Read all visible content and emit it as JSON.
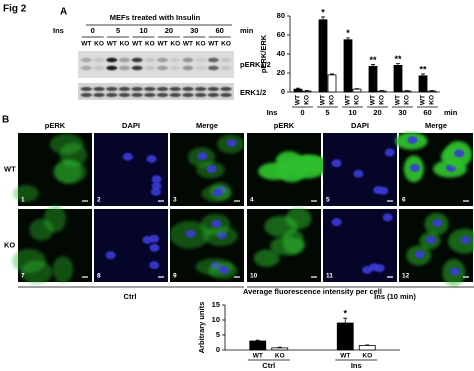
{
  "figure_label": "Fig 2",
  "panel_a": {
    "label": "A",
    "treatment": "MEFs treated with Insulin",
    "ins_label": "Ins",
    "times": [
      "0",
      "5",
      "10",
      "20",
      "30",
      "60"
    ],
    "time_unit": "min",
    "genotypes": [
      "WT",
      "KO"
    ],
    "blot_labels": [
      "pERK1/2",
      "ERK1/2"
    ]
  },
  "panel_b": {
    "label": "B",
    "columns": [
      "pERK",
      "DAPI",
      "Merge",
      "pERK",
      "DAPI",
      "Merge"
    ],
    "rows": [
      "WT",
      "KO"
    ],
    "image_numbers": [
      [
        1,
        2,
        3,
        4,
        5,
        6
      ],
      [
        7,
        8,
        9,
        10,
        11,
        12
      ]
    ],
    "conditions": [
      "Ctrl",
      "Ins (10 min)"
    ]
  },
  "chart_data": [
    {
      "type": "bar",
      "y_label": "pERK/ERK",
      "x_prefix": "Ins",
      "x_unit": "min",
      "categories": [
        "0",
        "5",
        "10",
        "20",
        "30",
        "60"
      ],
      "series": [
        {
          "name": "WT",
          "color": "#000000",
          "values": [
            3,
            76,
            55,
            27,
            28,
            17
          ],
          "errors": [
            1,
            3,
            2,
            2,
            2,
            2
          ],
          "annotations": [
            null,
            "*",
            "*",
            "**",
            "**",
            "**"
          ]
        },
        {
          "name": "KO",
          "color": "#ffffff",
          "values": [
            1,
            18,
            3,
            1,
            1,
            1
          ],
          "errors": [
            0.5,
            1,
            0.5,
            0.5,
            0.5,
            0.5
          ]
        }
      ],
      "ylim": [
        0,
        80
      ],
      "yticks": [
        0,
        20,
        40,
        60,
        80
      ]
    },
    {
      "type": "bar",
      "title": "Average fluorescence intensity per cell",
      "y_label": "Arbitrary units",
      "categories": [
        "Ctrl",
        "Ins"
      ],
      "series": [
        {
          "name": "WT",
          "color": "#000000",
          "values": [
            3,
            9
          ],
          "errors": [
            0.3,
            1.6
          ],
          "annotations": [
            null,
            "*"
          ]
        },
        {
          "name": "KO",
          "color": "#ffffff",
          "values": [
            0.7,
            1.5
          ],
          "errors": [
            0.2,
            0.2
          ]
        }
      ],
      "ylim": [
        0,
        15
      ],
      "yticks": [
        0,
        5,
        10,
        15
      ]
    }
  ]
}
